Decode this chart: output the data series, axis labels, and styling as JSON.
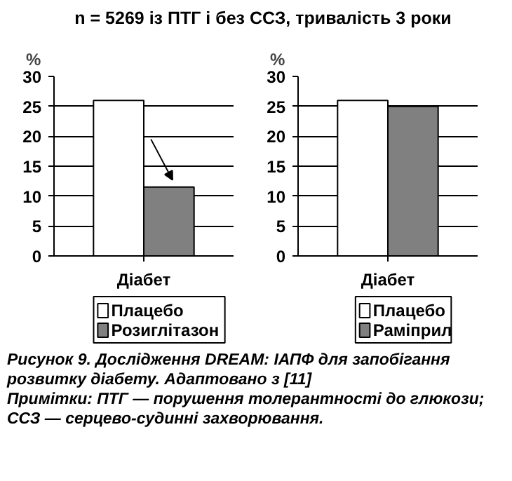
{
  "chart_data": [
    {
      "type": "bar",
      "title": "n = 5269 із ПТГ і без ССЗ, тривалість 3 роки",
      "ylabel": "%",
      "categories": [
        "Діабет"
      ],
      "series": [
        {
          "name": "Плацебо",
          "color": "#ffffff",
          "values": [
            26
          ]
        },
        {
          "name": "Розиглітазон",
          "color": "#808080",
          "values": [
            11.5
          ]
        }
      ],
      "ylim": [
        0,
        30
      ],
      "yticks": [
        0,
        5,
        10,
        15,
        20,
        25,
        30
      ],
      "grid": "y",
      "legend": "bottom"
    },
    {
      "type": "bar",
      "ylabel": "%",
      "categories": [
        "Діабет"
      ],
      "series": [
        {
          "name": "Плацебо",
          "color": "#ffffff",
          "values": [
            26
          ]
        },
        {
          "name": "Раміприл",
          "color": "#808080",
          "values": [
            25
          ]
        }
      ],
      "ylim": [
        0,
        30
      ],
      "yticks": [
        0,
        5,
        10,
        15,
        20,
        25,
        30
      ],
      "grid": "y",
      "legend": "bottom",
      "annotations": [
        "Рисунок 9. Дослідження DREAM: ІАПФ для запобігання розвитку діабету. Адаптовано з [11]",
        "Примітки: ПТГ — порушення толерантності до глюкози; ССЗ — серцево-судинні захворювання."
      ]
    }
  ]
}
